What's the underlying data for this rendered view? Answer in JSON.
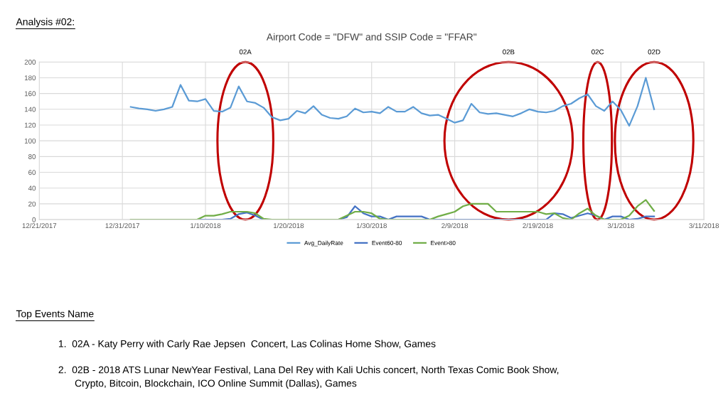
{
  "chart_data": {
    "type": "line",
    "title": "Airport Code = \"DFW\" and SSIP Code = \"FFAR\"",
    "x": [
      "2018-01-01",
      "2018-01-02",
      "2018-01-03",
      "2018-01-04",
      "2018-01-05",
      "2018-01-06",
      "2018-01-07",
      "2018-01-08",
      "2018-01-09",
      "2018-01-10",
      "2018-01-11",
      "2018-01-12",
      "2018-01-13",
      "2018-01-14",
      "2018-01-15",
      "2018-01-16",
      "2018-01-17",
      "2018-01-18",
      "2018-01-19",
      "2018-01-20",
      "2018-01-21",
      "2018-01-22",
      "2018-01-23",
      "2018-01-24",
      "2018-01-25",
      "2018-01-26",
      "2018-01-27",
      "2018-01-28",
      "2018-01-29",
      "2018-01-30",
      "2018-01-31",
      "2018-02-01",
      "2018-02-02",
      "2018-02-03",
      "2018-02-04",
      "2018-02-05",
      "2018-02-06",
      "2018-02-07",
      "2018-02-08",
      "2018-02-09",
      "2018-02-10",
      "2018-02-11",
      "2018-02-12",
      "2018-02-13",
      "2018-02-14",
      "2018-02-15",
      "2018-02-16",
      "2018-02-17",
      "2018-02-18",
      "2018-02-19",
      "2018-02-20",
      "2018-02-21",
      "2018-02-22",
      "2018-02-23",
      "2018-02-24",
      "2018-02-25",
      "2018-02-26",
      "2018-02-27",
      "2018-02-28",
      "2018-03-01",
      "2018-03-02",
      "2018-03-03",
      "2018-03-04",
      "2018-03-05"
    ],
    "series": [
      {
        "name": "Avg_DailyRate",
        "color": "#5b9bd5",
        "values": [
          143,
          141,
          140,
          138,
          140,
          143,
          171,
          151,
          150,
          153,
          138,
          137,
          142,
          169,
          150,
          148,
          142,
          130,
          126,
          128,
          138,
          135,
          144,
          133,
          129,
          128,
          131,
          141,
          136,
          137,
          135,
          143,
          137,
          137,
          143,
          135,
          132,
          133,
          128,
          123,
          126,
          147,
          136,
          134,
          135,
          133,
          131,
          135,
          140,
          137,
          136,
          138,
          144,
          147,
          154,
          159,
          144,
          138,
          150,
          139,
          119,
          144,
          180,
          140
        ]
      },
      {
        "name": "Event60-80",
        "color": "#4472c4",
        "values": [
          null,
          null,
          null,
          null,
          null,
          null,
          null,
          0,
          0,
          0,
          0,
          0,
          1,
          7,
          9,
          5,
          0,
          0,
          0,
          0,
          0,
          0,
          0,
          0,
          0,
          0,
          3,
          17,
          8,
          4,
          4,
          0,
          4,
          4,
          4,
          4,
          0,
          0,
          0,
          0,
          0,
          0,
          0,
          0,
          0,
          0,
          0,
          0,
          0,
          0,
          0,
          8,
          7,
          2,
          5,
          8,
          5,
          0,
          4,
          4,
          0,
          1,
          4,
          4
        ]
      },
      {
        "name": "Event>80",
        "color": "#70ad47",
        "values": [
          0,
          0,
          0,
          0,
          0,
          0,
          0,
          0,
          0,
          5,
          5,
          7,
          10,
          10,
          10,
          8,
          1,
          0,
          0,
          0,
          0,
          0,
          0,
          0,
          0,
          0,
          5,
          10,
          10,
          8,
          1,
          0,
          0,
          0,
          0,
          0,
          0,
          4,
          7,
          10,
          17,
          20,
          20,
          20,
          10,
          10,
          10,
          10,
          10,
          10,
          7,
          8,
          2,
          0,
          8,
          14,
          5,
          0,
          0,
          0,
          5,
          17,
          25,
          11
        ]
      }
    ],
    "xlim": [
      "2017-12-21",
      "2018-03-11"
    ],
    "xticks": [
      {
        "value": "2017-12-21",
        "label": "12/21/2017"
      },
      {
        "value": "2017-12-31",
        "label": "12/31/2017"
      },
      {
        "value": "2018-01-10",
        "label": "1/10/2018"
      },
      {
        "value": "2018-01-20",
        "label": "1/20/2018"
      },
      {
        "value": "2018-01-30",
        "label": "1/30/2018"
      },
      {
        "value": "2018-02-09",
        "label": "2/9/2018"
      },
      {
        "value": "2018-02-19",
        "label": "2/19/2018"
      },
      {
        "value": "2018-03-01",
        "label": "3/1/2018"
      },
      {
        "value": "2018-03-11",
        "label": "3/11/2018"
      }
    ],
    "ylim": [
      0,
      200
    ],
    "yticks": [
      0,
      20,
      40,
      60,
      80,
      100,
      120,
      140,
      160,
      180,
      200
    ],
    "grid": true,
    "legend": "bottom",
    "marker": "none",
    "line_style": "solid",
    "annotations": [
      "02A",
      "02B",
      "02C",
      "02D",
      "Analysis #02:",
      "Top Events Name",
      "1.  02A - Katy Perry with Carly Rae Jepsen  Concert, Las Colinas Home Show, Games",
      "2.  02B - 2018 ATS Lunar NewYear Festival, Lana Del Rey with Kali Uchis concert, North Texas Comic Book Show,\n      Crypto, Bitcoin, Blockchain, ICO Online Summit (Dallas), Games"
    ]
  }
}
